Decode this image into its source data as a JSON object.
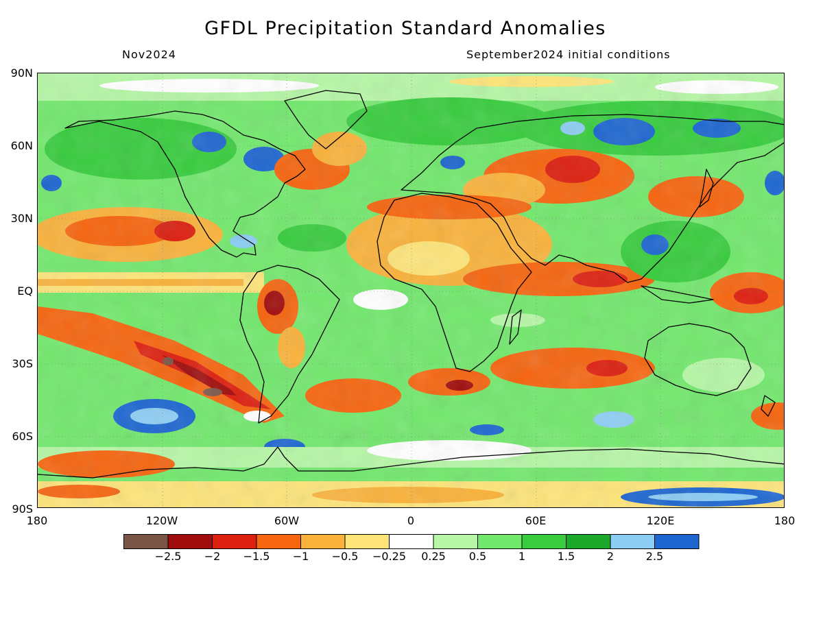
{
  "title": "GFDL Precipitation Standard Anomalies",
  "valid_month": "Nov2024",
  "initial_conditions": "September2024 initial conditions",
  "lat_ticks": [
    "90N",
    "60N",
    "30N",
    "EQ",
    "30S",
    "60S",
    "90S"
  ],
  "lon_ticks": [
    "180",
    "120W",
    "60W",
    "0",
    "60E",
    "120E",
    "180"
  ],
  "colorbar": {
    "colors": [
      "#7a5545",
      "#a00d0d",
      "#dd1f10",
      "#f6650f",
      "#f9b23b",
      "#fde479",
      "#ffffff",
      "#b6f6a6",
      "#72e86d",
      "#38cc3e",
      "#1ca82b",
      "#8ccdf4",
      "#1d66d0"
    ],
    "labels": [
      "-2.5",
      "-2",
      "-1.5",
      "-1",
      "-0.5",
      "-0.25",
      "0.25",
      "0.5",
      "1",
      "1.5",
      "2",
      "2.5"
    ]
  }
}
